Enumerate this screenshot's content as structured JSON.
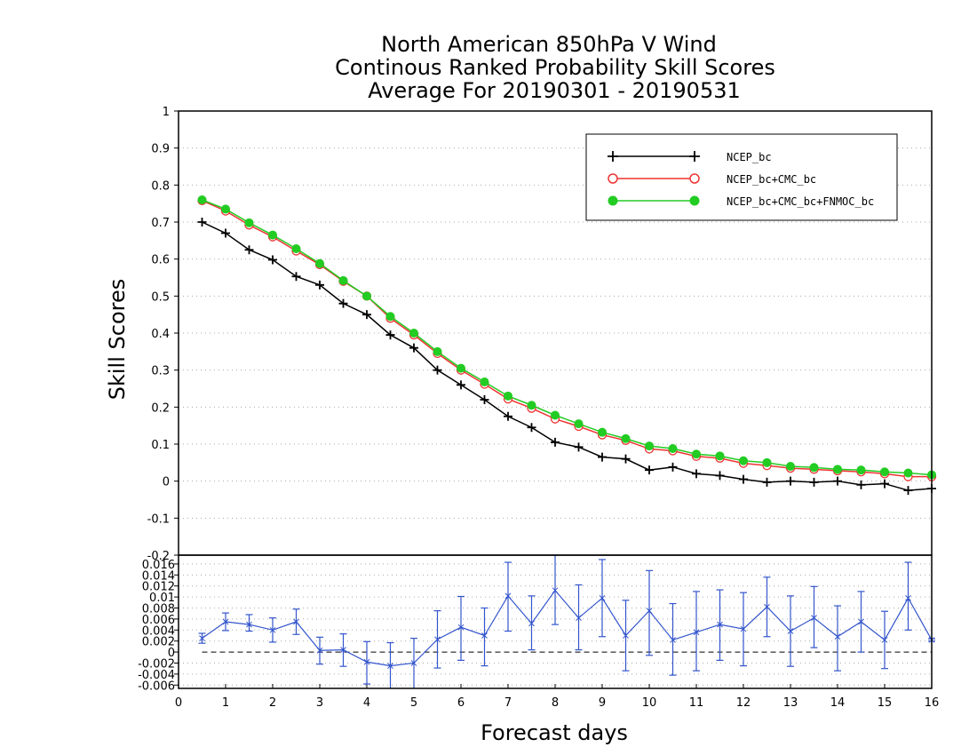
{
  "chart_data": [
    {
      "type": "line",
      "title": "North American 850hPa V Wind",
      "subtitle": "Continous Ranked Probability Skill Scores",
      "subtitle2": "Average For 20190301 - 20190531",
      "xlabel": "Forecast days",
      "ylabel": "Skill Scores",
      "xlim": [
        0,
        16
      ],
      "ylim": [
        -0.2,
        1
      ],
      "yticks": [
        "1",
        "0.9",
        "0.8",
        "0.7",
        "0.6",
        "0.5",
        "0.4",
        "0.3",
        "0.2",
        "0.1",
        "0",
        "-0.1",
        "-0.2"
      ],
      "xticks": [
        "0",
        "1",
        "2",
        "3",
        "4",
        "5",
        "6",
        "7",
        "8",
        "9",
        "10",
        "11",
        "12",
        "13",
        "14",
        "15",
        "16"
      ],
      "grid": true,
      "legend_position": "top-right",
      "x": [
        0.5,
        1,
        1.5,
        2,
        2.5,
        3,
        3.5,
        4,
        4.5,
        5,
        5.5,
        6,
        6.5,
        7,
        7.5,
        8,
        8.5,
        9,
        9.5,
        10,
        10.5,
        11,
        11.5,
        12,
        12.5,
        13,
        13.5,
        14,
        14.5,
        15,
        15.5,
        16
      ],
      "series": [
        {
          "name": "NCEP_bc",
          "color": "#000000",
          "marker": "plus",
          "values": [
            0.7,
            0.67,
            0.625,
            0.598,
            0.553,
            0.53,
            0.48,
            0.45,
            0.395,
            0.36,
            0.3,
            0.26,
            0.22,
            0.175,
            0.145,
            0.105,
            0.092,
            0.065,
            0.06,
            0.03,
            0.038,
            0.02,
            0.015,
            0.005,
            -0.003,
            0.0,
            -0.003,
            0.0,
            -0.01,
            -0.007,
            -0.025,
            -0.02
          ]
        },
        {
          "name": "NCEP_bc+CMC_bc",
          "color": "#ee3333",
          "marker": "circle-open",
          "values": [
            0.758,
            0.73,
            0.692,
            0.66,
            0.622,
            0.585,
            0.54,
            0.5,
            0.44,
            0.395,
            0.345,
            0.3,
            0.262,
            0.222,
            0.197,
            0.168,
            0.148,
            0.125,
            0.11,
            0.087,
            0.082,
            0.067,
            0.062,
            0.048,
            0.042,
            0.035,
            0.032,
            0.028,
            0.025,
            0.02,
            0.012,
            0.012
          ]
        },
        {
          "name": "NCEP_bc+CMC_bc+FNMOC_bc",
          "color": "#22cc22",
          "marker": "circle-filled",
          "values": [
            0.76,
            0.735,
            0.698,
            0.665,
            0.628,
            0.588,
            0.542,
            0.5,
            0.445,
            0.4,
            0.35,
            0.305,
            0.268,
            0.23,
            0.205,
            0.178,
            0.155,
            0.132,
            0.115,
            0.095,
            0.088,
            0.073,
            0.068,
            0.055,
            0.05,
            0.04,
            0.037,
            0.032,
            0.03,
            0.025,
            0.022,
            0.017
          ]
        }
      ]
    },
    {
      "type": "line",
      "xlim": [
        0,
        16
      ],
      "ylim": [
        -0.0066,
        0.0176
      ],
      "yticks": [
        "0.016",
        "0.014",
        "0.012",
        "0.01",
        "0.008",
        "0.006",
        "0.004",
        "0.002",
        "0",
        "-0.002",
        "-0.004",
        "-0.006"
      ],
      "grid": true,
      "color": "#3355cc",
      "x": [
        0.5,
        1,
        1.5,
        2,
        2.5,
        3,
        3.5,
        4,
        4.5,
        5,
        5.5,
        6,
        6.5,
        7,
        7.5,
        8,
        8.5,
        9,
        9.5,
        10,
        10.5,
        11,
        11.5,
        12,
        12.5,
        13,
        13.5,
        14,
        14.5,
        15,
        15.5,
        16
      ],
      "values": [
        0.0025,
        0.0055,
        0.005,
        0.004,
        0.0055,
        0.0003,
        0.0004,
        -0.0018,
        -0.0025,
        -0.002,
        0.0023,
        0.0045,
        0.003,
        0.0102,
        0.0052,
        0.0112,
        0.0062,
        0.0098,
        0.003,
        0.0075,
        0.0022,
        0.0036,
        0.005,
        0.0042,
        0.0082,
        0.0038,
        0.0062,
        0.0028,
        0.0055,
        0.0022,
        0.0098,
        0.0022
      ],
      "err_low": [
        0.0016,
        0.0039,
        0.0038,
        0.0018,
        0.0032,
        -0.0022,
        -0.0026,
        -0.0058,
        -0.0068,
        -0.0068,
        -0.0029,
        -0.0015,
        -0.0025,
        0.0038,
        0.0004,
        0.005,
        0.0004,
        0.0028,
        -0.0034,
        -0.0006,
        -0.0042,
        -0.0034,
        -0.0015,
        -0.0025,
        0.0028,
        -0.0026,
        0.0008,
        -0.0034,
        0.0,
        -0.003,
        0.004,
        0.002
      ],
      "err_high": [
        0.0034,
        0.0071,
        0.0068,
        0.0062,
        0.0078,
        0.0027,
        0.0033,
        0.0019,
        0.0017,
        0.0025,
        0.0075,
        0.0101,
        0.008,
        0.0163,
        0.0102,
        0.0176,
        0.0122,
        0.0168,
        0.0094,
        0.0148,
        0.0088,
        0.011,
        0.0113,
        0.0108,
        0.0136,
        0.0102,
        0.0119,
        0.0084,
        0.011,
        0.0074,
        0.0163,
        0.0024
      ]
    }
  ]
}
